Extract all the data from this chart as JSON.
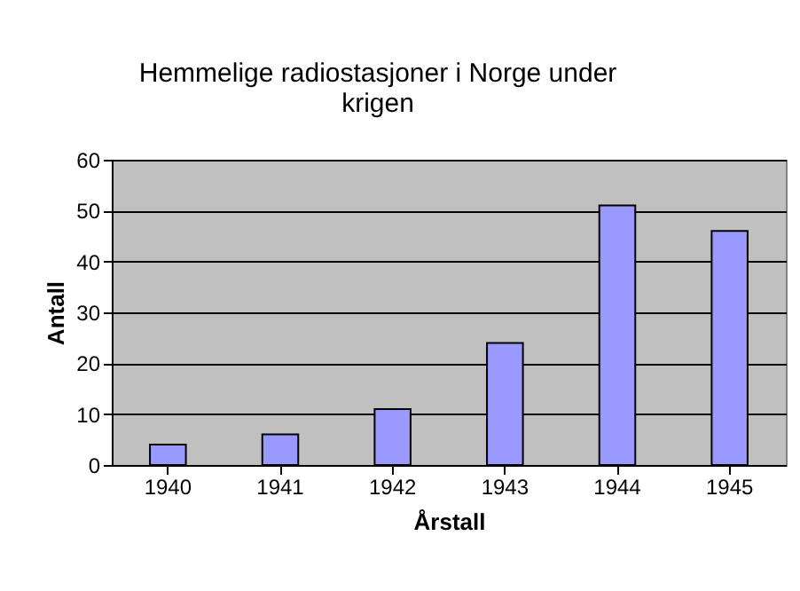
{
  "chart_data": {
    "type": "bar",
    "title": "Hemmelige radiostasjoner i Norge under krigen",
    "xlabel": "Årstall",
    "ylabel": "Antall",
    "categories": [
      "1940",
      "1941",
      "1942",
      "1943",
      "1944",
      "1945"
    ],
    "values": [
      4,
      6,
      11,
      24,
      51,
      46
    ],
    "color": "#9999ff",
    "ylim": [
      0,
      60
    ],
    "yticks": [
      0,
      10,
      20,
      30,
      40,
      50,
      60
    ],
    "grid": "y"
  }
}
